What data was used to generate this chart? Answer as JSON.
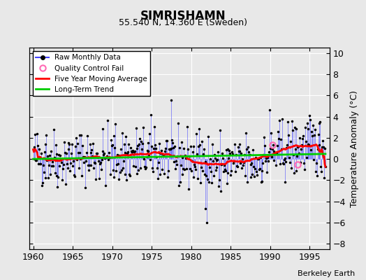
{
  "title": "SIMRISHAMN",
  "subtitle": "55.540 N, 14.360 E (Sweden)",
  "ylabel": "Temperature Anomaly (°C)",
  "credit": "Berkeley Earth",
  "xlim": [
    1959.5,
    1997.5
  ],
  "ylim": [
    -8.5,
    10.5
  ],
  "yticks": [
    -8,
    -6,
    -4,
    -2,
    0,
    2,
    4,
    6,
    8,
    10
  ],
  "xticks": [
    1960,
    1965,
    1970,
    1975,
    1980,
    1985,
    1990,
    1995
  ],
  "background_color": "#e8e8e8",
  "plot_bg_color": "#e8e8e8",
  "grid_color": "#ffffff",
  "line_color_raw": "#4444ff",
  "dot_color_raw": "#000000",
  "line_color_avg": "#ff0000",
  "line_color_trend": "#00cc00",
  "qc_fail_color": "#ff69b4",
  "qc_fail_points": [
    [
      1990.25,
      1.3
    ],
    [
      1993.5,
      -0.55
    ]
  ],
  "seed": 42,
  "start_year": 1960,
  "end_year": 1997
}
